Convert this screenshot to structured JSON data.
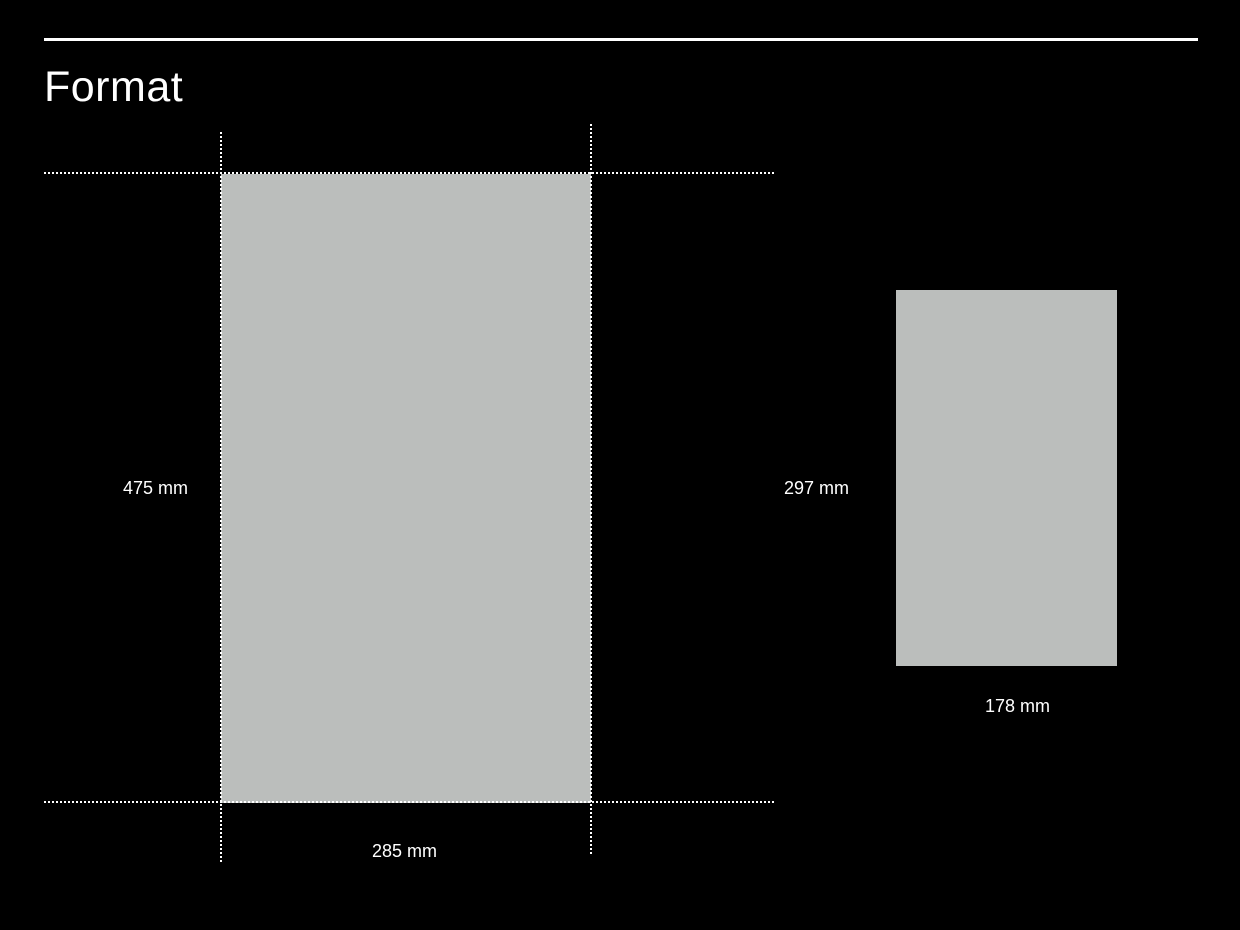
{
  "title": "Format",
  "colors": {
    "background": "#000000",
    "sheet": "#bbbebc",
    "guides": "#ffffff",
    "text": "#ffffff"
  },
  "formats": [
    {
      "height_label": "475 mm",
      "width_label": "285 mm",
      "height_mm": 475,
      "width_mm": 285,
      "guides": "dotted"
    },
    {
      "height_label": "297 mm",
      "width_label": "178 mm",
      "height_mm": 297,
      "width_mm": 178
    }
  ]
}
